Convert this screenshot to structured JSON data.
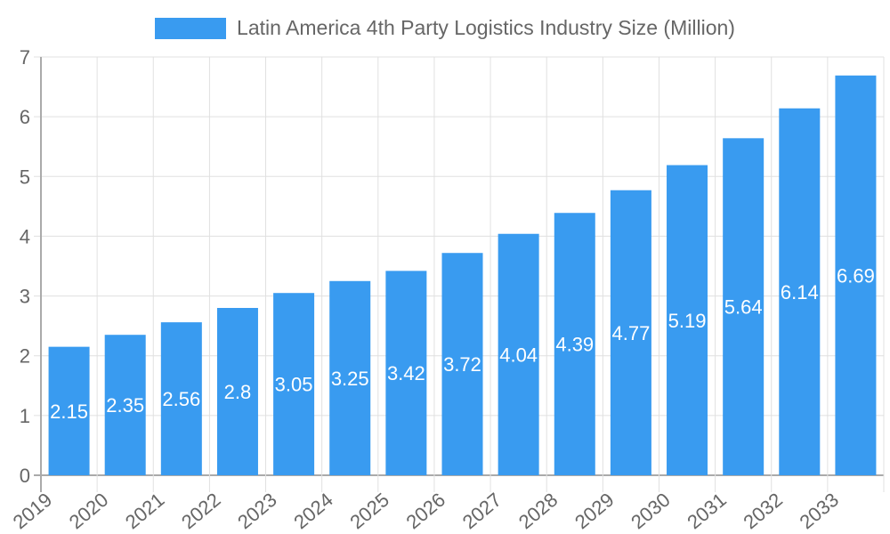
{
  "chart_data": {
    "type": "bar",
    "categories": [
      "2019",
      "2020",
      "2021",
      "2022",
      "2023",
      "2024",
      "2025",
      "2026",
      "2027",
      "2028",
      "2029",
      "2030",
      "2031",
      "2032",
      "2033"
    ],
    "series": [
      {
        "name": "Latin America 4th Party Logistics Industry Size (Million)",
        "values": [
          2.15,
          2.35,
          2.56,
          2.8,
          3.05,
          3.25,
          3.42,
          3.72,
          4.04,
          4.39,
          4.77,
          5.19,
          5.64,
          6.14,
          6.69
        ]
      }
    ],
    "ylim": [
      0,
      7
    ],
    "yticks": [
      0,
      1,
      2,
      3,
      4,
      5,
      6,
      7
    ],
    "grid": true,
    "legend_position": "top",
    "data_labels": true,
    "colors": {
      "bar": "#399bf0",
      "label": "#ffffff",
      "grid": "#e0e0e0",
      "axis": "#aaaaaa",
      "tick_text": "#666666"
    }
  }
}
